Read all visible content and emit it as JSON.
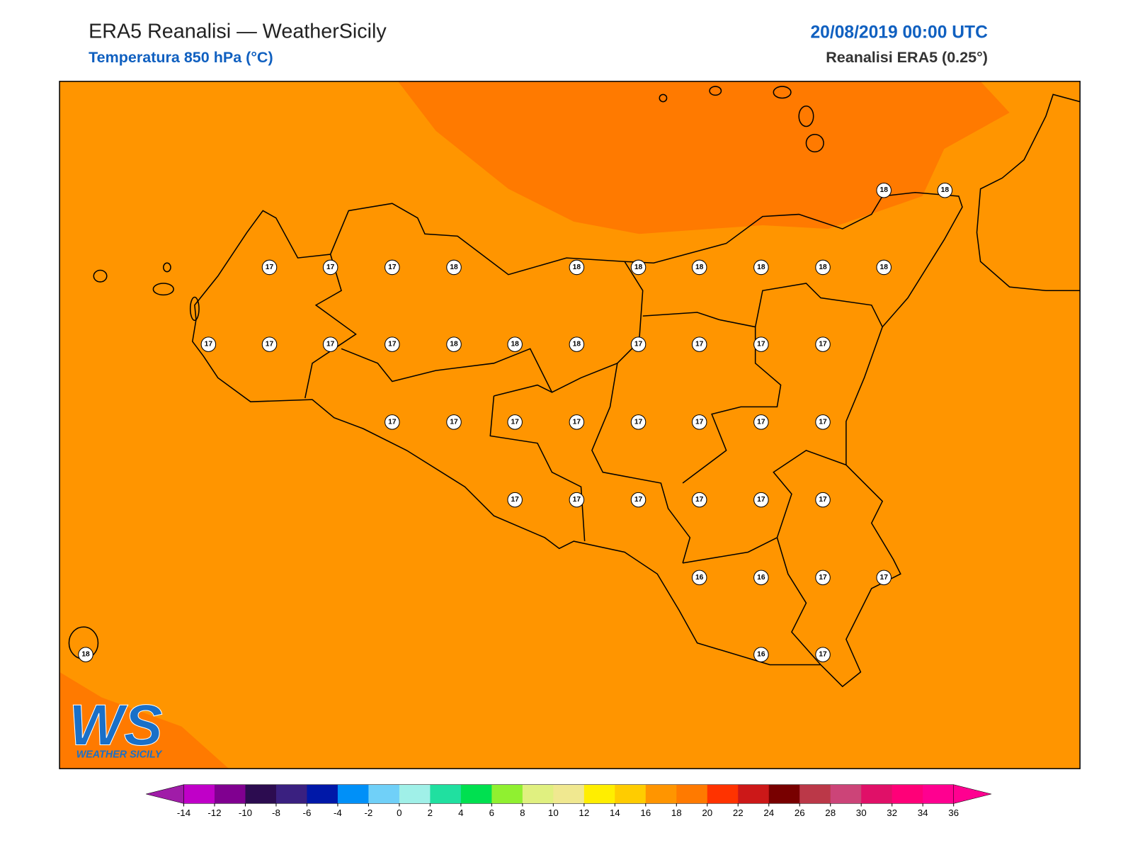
{
  "header": {
    "title": "ERA5 Reanalisi — WeatherSicily",
    "subtitle": "Temperatura 850 hPa (°C)",
    "datetime": "20/08/2019 00:00 UTC",
    "source": "Reanalisi ERA5 (0.25°)"
  },
  "map": {
    "background": "#ff9500",
    "warm_region": "#ff7a00",
    "points": [
      18,
      18,
      17,
      17,
      17,
      18,
      18,
      18,
      18,
      18,
      18,
      18,
      17,
      17,
      17,
      17,
      18,
      18,
      18,
      17,
      17,
      17,
      17,
      17,
      17,
      17,
      17,
      17,
      17,
      17,
      17,
      17,
      17,
      17,
      17,
      17,
      17,
      16,
      16,
      17,
      17,
      16,
      17,
      18
    ]
  },
  "logo": {
    "text": "WS",
    "subtitle": "WEATHER SICILY"
  },
  "colorbar": {
    "ticks": [
      -14,
      -12,
      -10,
      -8,
      -6,
      -4,
      -2,
      0,
      2,
      4,
      6,
      8,
      10,
      12,
      14,
      16,
      18,
      20,
      22,
      24,
      26,
      28,
      30,
      32,
      34,
      36
    ],
    "under": "#a01ca8",
    "over": "#ff0090",
    "colors": [
      "#c000c8",
      "#800090",
      "#2c0c50",
      "#3a2080",
      "#0018a8",
      "#0090f8",
      "#70d0f8",
      "#a0f0e8",
      "#20e0a0",
      "#00e050",
      "#90f030",
      "#e0f080",
      "#f0e890",
      "#ffee00",
      "#ffcc00",
      "#ff9500",
      "#ff7a00",
      "#ff3300",
      "#cc1818",
      "#780000",
      "#bb3848",
      "#cc4478",
      "#e01068",
      "#ff0078",
      "#ff0090"
    ]
  }
}
